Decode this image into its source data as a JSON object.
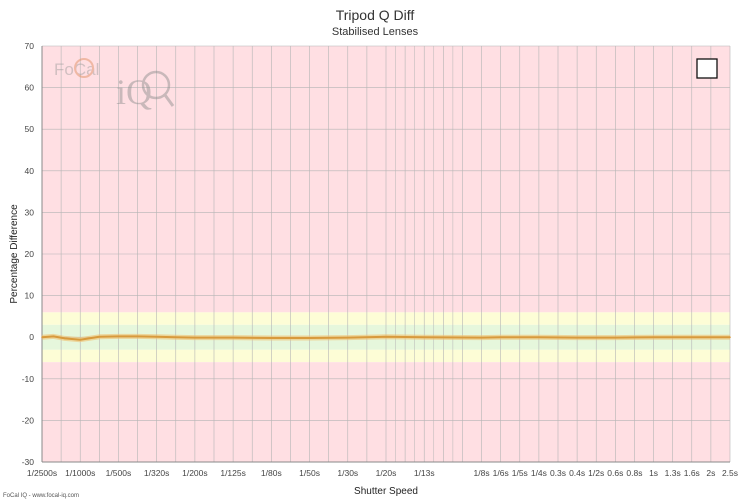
{
  "chart_data": {
    "type": "line",
    "title": "Tripod Q Diff",
    "subtitle": "Stabilised Lenses",
    "xlabel": "Shutter Speed",
    "ylabel": "Percentage Difference",
    "ylim": [
      -30,
      70
    ],
    "yticks": [
      -30,
      -20,
      -10,
      0,
      10,
      20,
      30,
      40,
      50,
      60,
      70
    ],
    "x_tick_labels": [
      "1/2500s",
      "1/1000s",
      "1/500s",
      "1/320s",
      "1/200s",
      "1/125s",
      "1/80s",
      "1/50s",
      "1/30s",
      "1/20s",
      "1/13s",
      "1/8s",
      "1/6s",
      "1/5s",
      "1/4s",
      "0.3s",
      "0.4s",
      "1/2s",
      "0.6s",
      "0.8s",
      "1s",
      "1.3s",
      "1.6s",
      "2s",
      "2.5s"
    ],
    "x_tick_positions": [
      0,
      1,
      2,
      3,
      4,
      5,
      6,
      7,
      8,
      9,
      10,
      11.5,
      12,
      12.5,
      13,
      13.5,
      14,
      14.5,
      15,
      15.5,
      16,
      16.5,
      17,
      17.5,
      18
    ],
    "xlim": [
      0,
      18
    ],
    "bands": [
      {
        "from": -6,
        "to": -3,
        "color": "#fdfdd6"
      },
      {
        "from": -3,
        "to": 3,
        "color": "#e6f7dc"
      },
      {
        "from": 3,
        "to": 6,
        "color": "#fdfdd6"
      },
      {
        "from": -30,
        "to": -6,
        "color": "#ffdfe3"
      },
      {
        "from": 6,
        "to": 70,
        "color": "#ffdfe3"
      }
    ],
    "grid": true,
    "legend": "top-right",
    "series": [
      {
        "color": "#d89a3c",
        "x": [
          0,
          0.3,
          0.6,
          1.0,
          1.5,
          2.0,
          2.5,
          3.0,
          3.5,
          4.0,
          5.0,
          6.0,
          7.0,
          8.0,
          9.0,
          10.0,
          11.5,
          12.0,
          13.0,
          14.0,
          15.0,
          16.0,
          17.0,
          18.0
        ],
        "values": [
          0,
          0.2,
          -0.3,
          -0.6,
          0.1,
          0.2,
          0.2,
          0.1,
          0,
          -0.1,
          -0.1,
          -0.2,
          -0.2,
          -0.1,
          0.1,
          0,
          -0.1,
          0,
          0,
          -0.1,
          -0.1,
          0,
          0,
          0
        ]
      }
    ]
  },
  "footer": "FoCal IQ - www.focal-iq.com",
  "logo_text": {
    "brand": "FoCal",
    "suffix": "iQ"
  },
  "colors": {
    "grid": "#b5b5b5",
    "axis": "#888888",
    "band_red": "#ffdfe3",
    "band_yellow": "#fdfdd6",
    "band_green": "#e6f7dc"
  }
}
